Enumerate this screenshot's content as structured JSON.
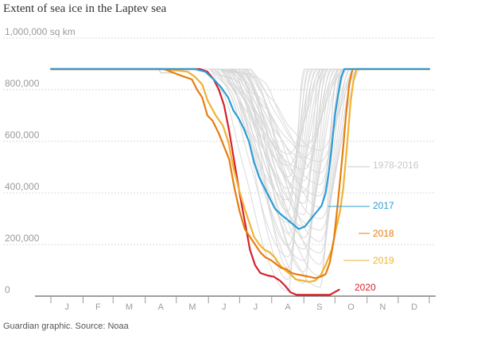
{
  "chart_data": {
    "type": "line",
    "title": "Extent of sea ice in the Laptev sea",
    "source": "Guardian graphic. Source: Noaa",
    "y_unit_label": "1,000,000 sq km",
    "ylim": [
      0,
      1000000
    ],
    "y_ticks": [
      {
        "value": 800000,
        "label": "800,000"
      },
      {
        "value": 600000,
        "label": "600,000"
      },
      {
        "value": 400000,
        "label": "400,000"
      },
      {
        "value": 200000,
        "label": "200,000"
      },
      {
        "value": 0,
        "label": "0"
      }
    ],
    "x_unit": "day of year",
    "xlim": [
      1,
      366
    ],
    "months": [
      "J",
      "F",
      "M",
      "A",
      "M",
      "J",
      "J",
      "A",
      "S",
      "O",
      "N",
      "D"
    ],
    "series": [
      {
        "name": "2020",
        "color": "#d7202a",
        "points": [
          [
            1,
            880000
          ],
          [
            110,
            880000
          ],
          [
            145,
            880000
          ],
          [
            152,
            870000
          ],
          [
            158,
            840000
          ],
          [
            163,
            800000
          ],
          [
            168,
            740000
          ],
          [
            173,
            640000
          ],
          [
            178,
            520000
          ],
          [
            183,
            400000
          ],
          [
            188,
            290000
          ],
          [
            193,
            180000
          ],
          [
            198,
            120000
          ],
          [
            203,
            90000
          ],
          [
            210,
            80000
          ],
          [
            216,
            75000
          ],
          [
            222,
            60000
          ],
          [
            227,
            40000
          ],
          [
            232,
            15000
          ],
          [
            238,
            5000
          ],
          [
            245,
            5000
          ],
          [
            260,
            5000
          ],
          [
            270,
            5000
          ],
          [
            279,
            25000
          ]
        ]
      },
      {
        "name": "2019",
        "color": "#f0b232",
        "points": [
          [
            1,
            880000
          ],
          [
            110,
            880000
          ],
          [
            133,
            870000
          ],
          [
            140,
            850000
          ],
          [
            147,
            820000
          ],
          [
            152,
            760000
          ],
          [
            160,
            700000
          ],
          [
            167,
            660000
          ],
          [
            172,
            600000
          ],
          [
            177,
            500000
          ],
          [
            182,
            420000
          ],
          [
            187,
            350000
          ],
          [
            192,
            290000
          ],
          [
            197,
            230000
          ],
          [
            202,
            200000
          ],
          [
            207,
            180000
          ],
          [
            212,
            170000
          ],
          [
            217,
            150000
          ],
          [
            222,
            120000
          ],
          [
            227,
            100000
          ],
          [
            232,
            85000
          ],
          [
            237,
            65000
          ],
          [
            244,
            60000
          ],
          [
            250,
            55000
          ],
          [
            256,
            60000
          ],
          [
            261,
            80000
          ],
          [
            266,
            120000
          ],
          [
            272,
            180000
          ],
          [
            276,
            260000
          ],
          [
            280,
            330000
          ],
          [
            283,
            420000
          ],
          [
            287,
            600000
          ],
          [
            290,
            750000
          ],
          [
            293,
            840000
          ],
          [
            296,
            880000
          ],
          [
            310,
            880000
          ],
          [
            366,
            880000
          ]
        ]
      },
      {
        "name": "2018",
        "color": "#e57d0f",
        "points": [
          [
            1,
            880000
          ],
          [
            110,
            880000
          ],
          [
            123,
            860000
          ],
          [
            130,
            850000
          ],
          [
            137,
            840000
          ],
          [
            142,
            800000
          ],
          [
            147,
            770000
          ],
          [
            152,
            700000
          ],
          [
            157,
            680000
          ],
          [
            163,
            630000
          ],
          [
            168,
            580000
          ],
          [
            173,
            530000
          ],
          [
            178,
            420000
          ],
          [
            183,
            330000
          ],
          [
            188,
            260000
          ],
          [
            193,
            230000
          ],
          [
            198,
            200000
          ],
          [
            203,
            170000
          ],
          [
            208,
            150000
          ],
          [
            213,
            140000
          ],
          [
            218,
            125000
          ],
          [
            223,
            110000
          ],
          [
            228,
            105000
          ],
          [
            233,
            90000
          ],
          [
            238,
            85000
          ],
          [
            244,
            80000
          ],
          [
            250,
            75000
          ],
          [
            256,
            70000
          ],
          [
            261,
            75000
          ],
          [
            266,
            85000
          ],
          [
            270,
            130000
          ],
          [
            274,
            220000
          ],
          [
            277,
            330000
          ],
          [
            280,
            450000
          ],
          [
            283,
            580000
          ],
          [
            286,
            720000
          ],
          [
            289,
            830000
          ],
          [
            292,
            880000
          ],
          [
            366,
            880000
          ]
        ]
      },
      {
        "name": "2017",
        "color": "#2d9cd6",
        "points": [
          [
            1,
            880000
          ],
          [
            140,
            880000
          ],
          [
            150,
            870000
          ],
          [
            158,
            840000
          ],
          [
            165,
            810000
          ],
          [
            172,
            770000
          ],
          [
            177,
            720000
          ],
          [
            182,
            690000
          ],
          [
            187,
            650000
          ],
          [
            192,
            600000
          ],
          [
            197,
            520000
          ],
          [
            202,
            460000
          ],
          [
            207,
            420000
          ],
          [
            212,
            380000
          ],
          [
            217,
            340000
          ],
          [
            222,
            320000
          ],
          [
            228,
            300000
          ],
          [
            234,
            280000
          ],
          [
            240,
            260000
          ],
          [
            246,
            270000
          ],
          [
            252,
            300000
          ],
          [
            258,
            330000
          ],
          [
            262,
            350000
          ],
          [
            266,
            400000
          ],
          [
            269,
            480000
          ],
          [
            272,
            580000
          ],
          [
            275,
            700000
          ],
          [
            278,
            780000
          ],
          [
            281,
            850000
          ],
          [
            284,
            880000
          ],
          [
            366,
            880000
          ]
        ]
      }
    ],
    "labels": {
      "background": "1978-2016",
      "s2017": "2017",
      "s2018": "2018",
      "s2019": "2019",
      "s2020": "2020"
    },
    "background_series_color": "#d6d6d6",
    "background_years": "1978-2016"
  }
}
